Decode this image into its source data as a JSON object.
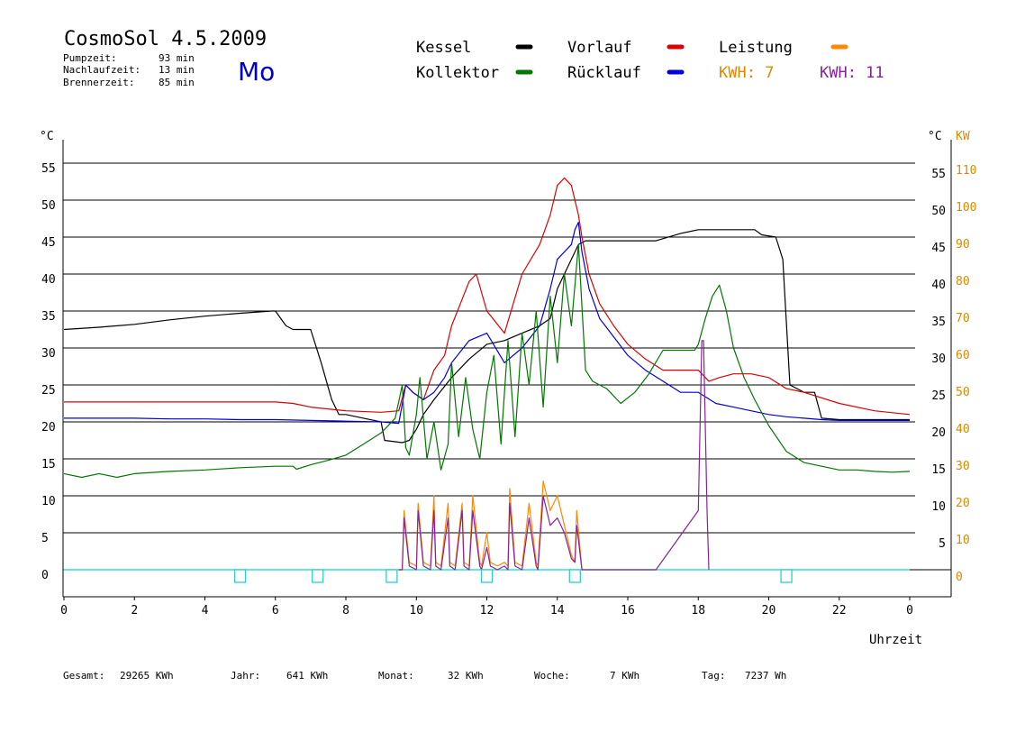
{
  "header": {
    "title": "CosmoSol 4.5.2009",
    "day": "Mo",
    "stats": [
      {
        "label": "Pumpzeit:",
        "value": "93 min"
      },
      {
        "label": "Nachlaufzeit:",
        "value": "13 min"
      },
      {
        "label": "Brennerzeit:",
        "value": "85 min"
      }
    ]
  },
  "legend": {
    "items": [
      {
        "label": "Kessel",
        "color": "#000000"
      },
      {
        "label": "Vorlauf",
        "color": "#dd0000"
      },
      {
        "label": "Leistung",
        "color": "#ff8800"
      },
      {
        "label": "Kollektor",
        "color": "#007700"
      },
      {
        "label": "Rücklauf",
        "color": "#0000dd"
      }
    ],
    "kwh1": "KWH: 7",
    "kwh1_color": "#dd8800",
    "kwh2": "KWH: 11",
    "kwh2_color": "#882299"
  },
  "footer": [
    {
      "label": "Gesamt:",
      "value": "29265 KWh"
    },
    {
      "label": "Jahr:",
      "value": "641 KWh"
    },
    {
      "label": "Monat:",
      "value": "32 KWh"
    },
    {
      "label": "Woche:",
      "value": "7 KWh"
    },
    {
      "label": "Tag:",
      "value": "7237 Wh"
    }
  ],
  "chart_data": {
    "type": "line",
    "xlabel": "Uhrzeit",
    "ylabel_left": "°C",
    "ylabel_right_temp": "°C",
    "ylabel_right_power": "KW",
    "x_ticks": [
      "0",
      "2",
      "4",
      "6",
      "8",
      "10",
      "12",
      "14",
      "16",
      "18",
      "20",
      "22",
      "0"
    ],
    "x_range": [
      0,
      24
    ],
    "y_left_ticks": [
      "0",
      "5",
      "10",
      "15",
      "20",
      "25",
      "30",
      "35",
      "40",
      "45",
      "50",
      "55"
    ],
    "y_right_temp_ticks": [
      "5",
      "10",
      "15",
      "20",
      "25",
      "30",
      "35",
      "40",
      "45",
      "50",
      "55"
    ],
    "y_right_power_ticks": [
      "0",
      "10",
      "20",
      "30",
      "40",
      "50",
      "60",
      "70",
      "80",
      "90",
      "100",
      "110"
    ],
    "ylim": [
      -4,
      58
    ],
    "grid": true,
    "series": [
      {
        "name": "Kessel",
        "color": "#000000",
        "x": [
          0,
          1,
          2,
          3,
          4,
          5,
          5.9,
          6.0,
          6.3,
          6.5,
          7.0,
          7.3,
          7.6,
          7.8,
          8.0,
          8.5,
          9.0,
          9.1,
          9.6,
          9.8,
          10.0,
          10.2,
          10.5,
          11.0,
          11.5,
          12.0,
          12.5,
          13.0,
          13.5,
          13.8,
          14.0,
          14.3,
          14.6,
          14.8,
          15.0,
          16.0,
          16.8,
          17.5,
          18.0,
          18.5,
          19.0,
          19.6,
          19.8,
          20.2,
          20.4,
          20.6,
          21.0,
          21.3,
          21.5,
          22,
          23,
          24
        ],
        "y": [
          32.5,
          32.8,
          33.2,
          33.8,
          34.3,
          34.7,
          35.0,
          35.0,
          33,
          32.5,
          32.5,
          28,
          23,
          21,
          21,
          20.5,
          20,
          17.5,
          17.2,
          17.5,
          19,
          21,
          23,
          26,
          28.5,
          30.5,
          31,
          32,
          33,
          34,
          38,
          41,
          44,
          44.5,
          44.5,
          44.5,
          44.5,
          45.5,
          46,
          46,
          46,
          46,
          45.3,
          45,
          42,
          25,
          24,
          24,
          20.5,
          20.3,
          20.3,
          20.3
        ]
      },
      {
        "name": "Vorlauf",
        "color": "#dd0000",
        "x": [
          0,
          2,
          4,
          6,
          6.5,
          7,
          8,
          9,
          9.5,
          9.7,
          9.9,
          10.2,
          10.5,
          10.8,
          11.0,
          11.5,
          11.7,
          12.0,
          12.5,
          13.0,
          13.5,
          13.8,
          14.0,
          14.2,
          14.4,
          14.5,
          14.6,
          14.7,
          14.9,
          15.2,
          15.6,
          16.0,
          16.5,
          17.0,
          17.5,
          18.0,
          18.3,
          18.6,
          19.0,
          19.5,
          20.0,
          20.5,
          21.0,
          22.0,
          23.0,
          24.0
        ],
        "y": [
          22.7,
          22.7,
          22.7,
          22.7,
          22.5,
          22.0,
          21.5,
          21.3,
          21.5,
          25,
          24,
          23,
          27,
          29,
          33,
          39,
          40,
          35,
          32,
          40,
          44,
          48,
          52,
          53,
          52,
          50,
          48,
          45,
          40,
          36,
          33,
          30.5,
          28.5,
          27,
          27,
          27,
          25.5,
          26,
          26.5,
          26.5,
          26,
          24.5,
          24,
          22.5,
          21.5,
          21.0
        ]
      },
      {
        "name": "Rücklauf",
        "color": "#0000dd",
        "x": [
          0,
          1,
          2,
          3,
          4,
          5,
          6,
          7,
          8,
          9,
          9.5,
          9.7,
          9.9,
          10.2,
          10.5,
          10.8,
          11.0,
          11.5,
          12.0,
          12.5,
          13.0,
          13.5,
          13.8,
          14.0,
          14.2,
          14.4,
          14.5,
          14.6,
          14.7,
          14.9,
          15.2,
          15.6,
          16.0,
          16.5,
          17.0,
          17.5,
          18.0,
          18.5,
          19.0,
          19.5,
          20.0,
          20.5,
          21.0,
          21.5,
          22.0,
          23.0,
          24.0
        ],
        "y": [
          20.5,
          20.5,
          20.5,
          20.4,
          20.4,
          20.3,
          20.3,
          20.2,
          20.1,
          20.0,
          19.8,
          25,
          24,
          23,
          24,
          26,
          28,
          31,
          32,
          28,
          30,
          33,
          38,
          42,
          43,
          44,
          46,
          47,
          43,
          38,
          34,
          31.5,
          29,
          27,
          25.5,
          24.0,
          24.0,
          22.5,
          22,
          21.5,
          21,
          20.7,
          20.5,
          20.3,
          20.2,
          20.2,
          20.2
        ]
      },
      {
        "name": "Kollektor",
        "color": "#007700",
        "x": [
          0,
          0.5,
          1,
          1.5,
          2,
          3,
          4,
          5,
          6,
          6.5,
          6.6,
          7,
          7.5,
          8,
          8.5,
          9,
          9.4,
          9.6,
          9.7,
          9.8,
          10.0,
          10.1,
          10.3,
          10.5,
          10.7,
          10.9,
          11.0,
          11.2,
          11.4,
          11.6,
          11.8,
          12.0,
          12.2,
          12.4,
          12.6,
          12.8,
          13.0,
          13.2,
          13.4,
          13.6,
          13.8,
          14.0,
          14.2,
          14.4,
          14.6,
          14.8,
          15.0,
          15.4,
          15.8,
          16.2,
          16.6,
          17.0,
          17.5,
          17.9,
          18.0,
          18.2,
          18.4,
          18.6,
          18.8,
          19.0,
          19.3,
          19.6,
          20.0,
          20.5,
          21.0,
          21.5,
          22,
          22.5,
          23,
          23.5,
          24
        ],
        "y": [
          13,
          12.5,
          13,
          12.5,
          13,
          13.3,
          13.5,
          13.8,
          14,
          14,
          13.6,
          14.2,
          14.8,
          15.5,
          17,
          18.5,
          20.5,
          25,
          16.5,
          15.5,
          21.0,
          26,
          15,
          20,
          13.5,
          17,
          28,
          18,
          26,
          19,
          15,
          24,
          29,
          17,
          31,
          18,
          32,
          25,
          35,
          22,
          37,
          28,
          40,
          33,
          44,
          27,
          25.5,
          24.5,
          22.5,
          24,
          26.5,
          29.7,
          29.7,
          29.7,
          30.5,
          34,
          37,
          38.5,
          35,
          30,
          26,
          23,
          19.5,
          16,
          14.5,
          14,
          13.5,
          13.5,
          13.3,
          13.2,
          13.3
        ]
      },
      {
        "name": "Leistung",
        "color": "#ff8800",
        "x": [
          9.5,
          9.6,
          9.65,
          9.8,
          10.0,
          10.05,
          10.2,
          10.4,
          10.5,
          10.55,
          10.7,
          10.9,
          10.95,
          11.1,
          11.3,
          11.35,
          11.5,
          11.6,
          11.8,
          11.85,
          12.0,
          12.1,
          12.3,
          12.5,
          12.6,
          12.65,
          12.8,
          13.0,
          13.2,
          13.4,
          13.45,
          13.6,
          13.8,
          14.0,
          14.2,
          14.4,
          14.5,
          14.55,
          14.7
        ],
        "y": [
          0,
          0,
          8,
          1,
          0.5,
          9,
          1,
          0.5,
          10,
          1,
          0.5,
          9,
          1,
          0.5,
          9,
          1,
          0.5,
          10,
          1,
          0.5,
          5,
          1,
          0.5,
          1,
          0.5,
          11,
          1,
          0.5,
          9,
          1,
          0.5,
          12,
          8,
          10,
          6,
          2,
          1,
          8,
          0
        ]
      },
      {
        "name": "KWH",
        "color": "#882299",
        "x": [
          9.5,
          9.6,
          9.65,
          9.8,
          10.0,
          10.05,
          10.2,
          10.4,
          10.5,
          10.55,
          10.7,
          10.9,
          10.95,
          11.1,
          11.3,
          11.35,
          11.5,
          11.6,
          11.8,
          11.85,
          12.0,
          12.1,
          12.3,
          12.5,
          12.6,
          12.65,
          12.8,
          13.0,
          13.2,
          13.4,
          13.45,
          13.6,
          13.8,
          14.0,
          14.2,
          14.4,
          14.5,
          14.55,
          14.7,
          16.8,
          18.0,
          18.1,
          18.15,
          18.25,
          18.3
        ],
        "y": [
          0,
          0,
          7,
          0.5,
          0,
          8,
          0.5,
          0,
          8,
          0.5,
          0,
          7,
          0.5,
          0,
          8,
          0.5,
          0,
          8,
          0.5,
          0,
          3,
          0.5,
          0,
          0.5,
          0,
          9,
          0.5,
          0,
          7,
          0.5,
          0,
          10,
          6,
          7,
          5,
          1.5,
          1,
          6,
          0,
          0,
          8,
          31,
          31,
          8,
          0
        ]
      }
    ],
    "markers_x": [
      5.0,
      7.2,
      9.3,
      12.0,
      14.5,
      20.5
    ]
  }
}
